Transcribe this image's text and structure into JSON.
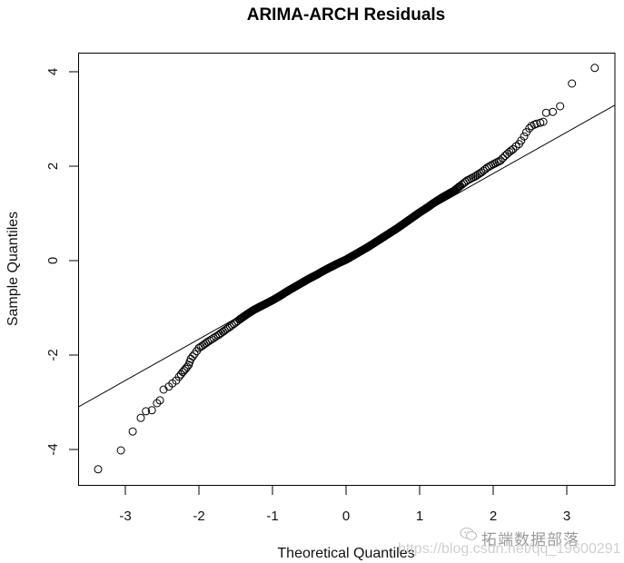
{
  "chart_data": {
    "type": "scatter",
    "subtype": "qq-plot",
    "title": "ARIMA-ARCH Residuals",
    "xlabel": "Theoretical Quantiles",
    "ylabel": "Sample Quantiles",
    "xlim": [
      -3.64,
      3.65
    ],
    "ylim": [
      -4.9,
      4.45
    ],
    "xticks": [
      -3,
      -2,
      -1,
      0,
      1,
      2,
      3
    ],
    "yticks": [
      -4,
      -2,
      0,
      2,
      4
    ],
    "grid": false,
    "legend": null,
    "reference_line": {
      "x0": -3.64,
      "y0": -3.1,
      "x1": 3.65,
      "y1": 3.29,
      "slope": 0.88,
      "intercept": 0.1
    },
    "series": [
      {
        "name": "residuals",
        "marker": "open-circle",
        "points": [
          [
            -3.37,
            -4.42
          ],
          [
            -3.06,
            -4.02
          ],
          [
            -2.9,
            -3.62
          ],
          [
            -2.79,
            -3.33
          ],
          [
            -2.72,
            -3.19
          ],
          [
            -2.64,
            -3.17
          ],
          [
            -2.57,
            -3.02
          ],
          [
            -2.53,
            -2.96
          ],
          [
            -2.48,
            -2.73
          ],
          [
            -2.41,
            -2.67
          ],
          [
            -2.36,
            -2.6
          ],
          [
            -2.31,
            -2.54
          ],
          [
            -2.27,
            -2.46
          ],
          [
            -2.22,
            -2.36
          ],
          [
            -2.18,
            -2.29
          ],
          [
            -2.14,
            -2.21
          ],
          [
            -2.11,
            -2.08
          ],
          [
            -2.06,
            -1.98
          ],
          [
            -2.0,
            -1.85
          ],
          [
            -1.95,
            -1.8
          ],
          [
            -1.88,
            -1.72
          ],
          [
            -1.8,
            -1.64
          ],
          [
            -1.74,
            -1.58
          ],
          [
            -1.65,
            -1.48
          ],
          [
            -1.55,
            -1.37
          ],
          [
            -1.45,
            -1.25
          ],
          [
            -1.35,
            -1.14
          ],
          [
            -1.25,
            -1.04
          ],
          [
            -1.15,
            -0.96
          ],
          [
            -1.0,
            -0.84
          ],
          [
            -0.9,
            -0.75
          ],
          [
            -0.8,
            -0.65
          ],
          [
            -0.7,
            -0.56
          ],
          [
            -0.6,
            -0.47
          ],
          [
            -0.5,
            -0.38
          ],
          [
            -0.4,
            -0.3
          ],
          [
            -0.3,
            -0.21
          ],
          [
            -0.2,
            -0.13
          ],
          [
            -0.1,
            -0.05
          ],
          [
            0.0,
            0.02
          ],
          [
            0.1,
            0.11
          ],
          [
            0.2,
            0.2
          ],
          [
            0.3,
            0.29
          ],
          [
            0.4,
            0.39
          ],
          [
            0.5,
            0.49
          ],
          [
            0.6,
            0.59
          ],
          [
            0.7,
            0.69
          ],
          [
            0.8,
            0.8
          ],
          [
            0.9,
            0.91
          ],
          [
            1.0,
            1.02
          ],
          [
            1.1,
            1.12
          ],
          [
            1.2,
            1.23
          ],
          [
            1.3,
            1.33
          ],
          [
            1.4,
            1.42
          ],
          [
            1.47,
            1.48
          ],
          [
            1.55,
            1.58
          ],
          [
            1.65,
            1.7
          ],
          [
            1.75,
            1.78
          ],
          [
            1.84,
            1.87
          ],
          [
            1.92,
            1.97
          ],
          [
            2.0,
            2.04
          ],
          [
            2.05,
            2.08
          ],
          [
            2.1,
            2.12
          ],
          [
            2.16,
            2.22
          ],
          [
            2.22,
            2.3
          ],
          [
            2.27,
            2.36
          ],
          [
            2.31,
            2.42
          ],
          [
            2.35,
            2.47
          ],
          [
            2.38,
            2.54
          ],
          [
            2.42,
            2.63
          ],
          [
            2.45,
            2.72
          ],
          [
            2.49,
            2.8
          ],
          [
            2.52,
            2.85
          ],
          [
            2.56,
            2.88
          ],
          [
            2.59,
            2.9
          ],
          [
            2.64,
            2.92
          ],
          [
            2.68,
            2.94
          ],
          [
            2.72,
            3.13
          ],
          [
            2.81,
            3.15
          ],
          [
            2.91,
            3.27
          ],
          [
            3.07,
            3.75
          ],
          [
            3.38,
            4.08
          ]
        ]
      }
    ]
  },
  "header": {
    "title": "ARIMA-ARCH Residuals"
  },
  "axes": {
    "x_label": "Theoretical Quantiles",
    "y_label": "Sample Quantiles",
    "x_tick_labels": [
      "-3",
      "-2",
      "-1",
      "0",
      "1",
      "2",
      "3"
    ],
    "y_tick_labels": [
      "-4",
      "-2",
      "0",
      "2",
      "4"
    ]
  },
  "watermark": {
    "brand_text": "拓端数据部落",
    "url_text": "https://blog.csdn.net/qq_19600291",
    "icon": "wechat-icon"
  },
  "colors": {
    "points": "#000000",
    "line": "#000000",
    "frame": "#000000",
    "background": "#ffffff"
  }
}
